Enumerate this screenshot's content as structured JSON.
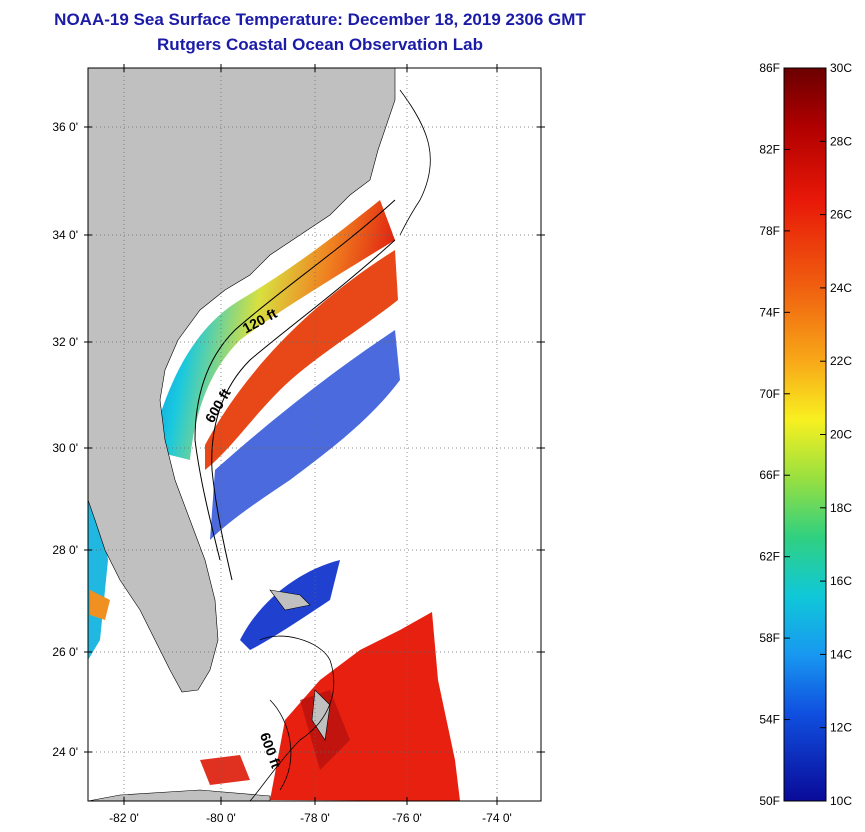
{
  "header": {
    "title_line1": "NOAA-19 Sea Surface Temperature:  December 18, 2019 2306 GMT",
    "title_line2": "Rutgers Coastal Ocean Observation Lab"
  },
  "map": {
    "lat_labels": [
      "36 0'",
      "34 0'",
      "32 0'",
      "30 0'",
      "28 0'",
      "26 0'",
      "24 0'"
    ],
    "lon_labels": [
      "-82 0'",
      "-80 0'",
      "-78 0'",
      "-76 0'",
      "-74 0'"
    ],
    "contour_labels": [
      "120 ft",
      "600 ft",
      "600 ft"
    ],
    "colors": {
      "land": "#c0c0c0",
      "cold": "#1030c8",
      "warm": "#e82010",
      "coastal": "#20b0e8"
    }
  },
  "colorbar": {
    "fahrenheit": [
      "86F",
      "82F",
      "78F",
      "74F",
      "70F",
      "66F",
      "62F",
      "58F",
      "54F",
      "50F"
    ],
    "celsius": [
      "30C",
      "28C",
      "26C",
      "24C",
      "22C",
      "20C",
      "18C",
      "16C",
      "14C",
      "12C",
      "10C"
    ]
  }
}
